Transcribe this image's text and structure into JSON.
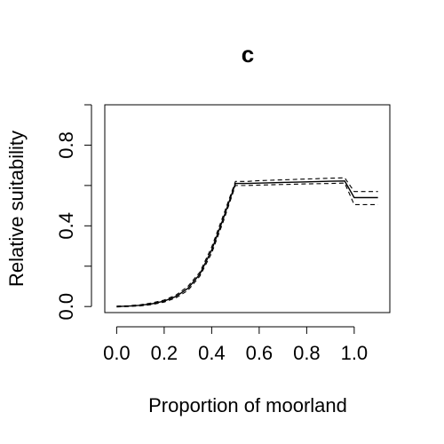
{
  "chart_data": {
    "type": "line",
    "title": "c",
    "xlabel": "Proportion of moorland",
    "ylabel": "Relative suitability",
    "xlim": [
      -0.05,
      1.15
    ],
    "ylim": [
      -0.03,
      1.0
    ],
    "x_ticks": [
      0.0,
      0.2,
      0.4,
      0.6,
      0.8,
      1.0
    ],
    "x_tick_labels": [
      "0.0",
      "0.2",
      "0.4",
      "0.6",
      "0.8",
      "1.0"
    ],
    "y_ticks": [
      0.0,
      0.2,
      0.4,
      0.6,
      0.8,
      1.0
    ],
    "y_tick_labels": [
      "0.0",
      "",
      "0.4",
      "",
      "0.8",
      ""
    ],
    "grid": false,
    "legend": "none",
    "series": [
      {
        "role": "estimate",
        "style": "solid",
        "x": [
          0.0,
          0.05,
          0.1,
          0.15,
          0.2,
          0.25,
          0.3,
          0.35,
          0.4,
          0.45,
          0.5,
          0.55,
          0.6,
          0.7,
          0.8,
          0.9,
          0.96,
          1.0,
          1.1
        ],
        "y": [
          0.0,
          0.002,
          0.006,
          0.014,
          0.027,
          0.05,
          0.09,
          0.16,
          0.28,
          0.44,
          0.61,
          0.61,
          0.612,
          0.615,
          0.618,
          0.621,
          0.622,
          0.54,
          0.54
        ]
      },
      {
        "role": "upper-ci",
        "style": "dashed",
        "x": [
          0.0,
          0.05,
          0.1,
          0.15,
          0.2,
          0.25,
          0.3,
          0.35,
          0.4,
          0.45,
          0.5,
          0.55,
          0.6,
          0.7,
          0.8,
          0.9,
          0.96,
          1.0,
          1.1
        ],
        "y": [
          0.002,
          0.004,
          0.009,
          0.018,
          0.032,
          0.057,
          0.1,
          0.17,
          0.295,
          0.455,
          0.62,
          0.62,
          0.624,
          0.628,
          0.632,
          0.636,
          0.638,
          0.57,
          0.57
        ]
      },
      {
        "role": "lower-ci",
        "style": "dashed",
        "x": [
          0.0,
          0.05,
          0.1,
          0.15,
          0.2,
          0.25,
          0.3,
          0.35,
          0.4,
          0.45,
          0.5,
          0.55,
          0.6,
          0.7,
          0.8,
          0.9,
          0.96,
          1.0,
          1.1
        ],
        "y": [
          -0.002,
          0.0,
          0.003,
          0.01,
          0.022,
          0.043,
          0.08,
          0.15,
          0.265,
          0.425,
          0.6,
          0.6,
          0.602,
          0.605,
          0.608,
          0.61,
          0.612,
          0.505,
          0.505
        ]
      }
    ]
  }
}
